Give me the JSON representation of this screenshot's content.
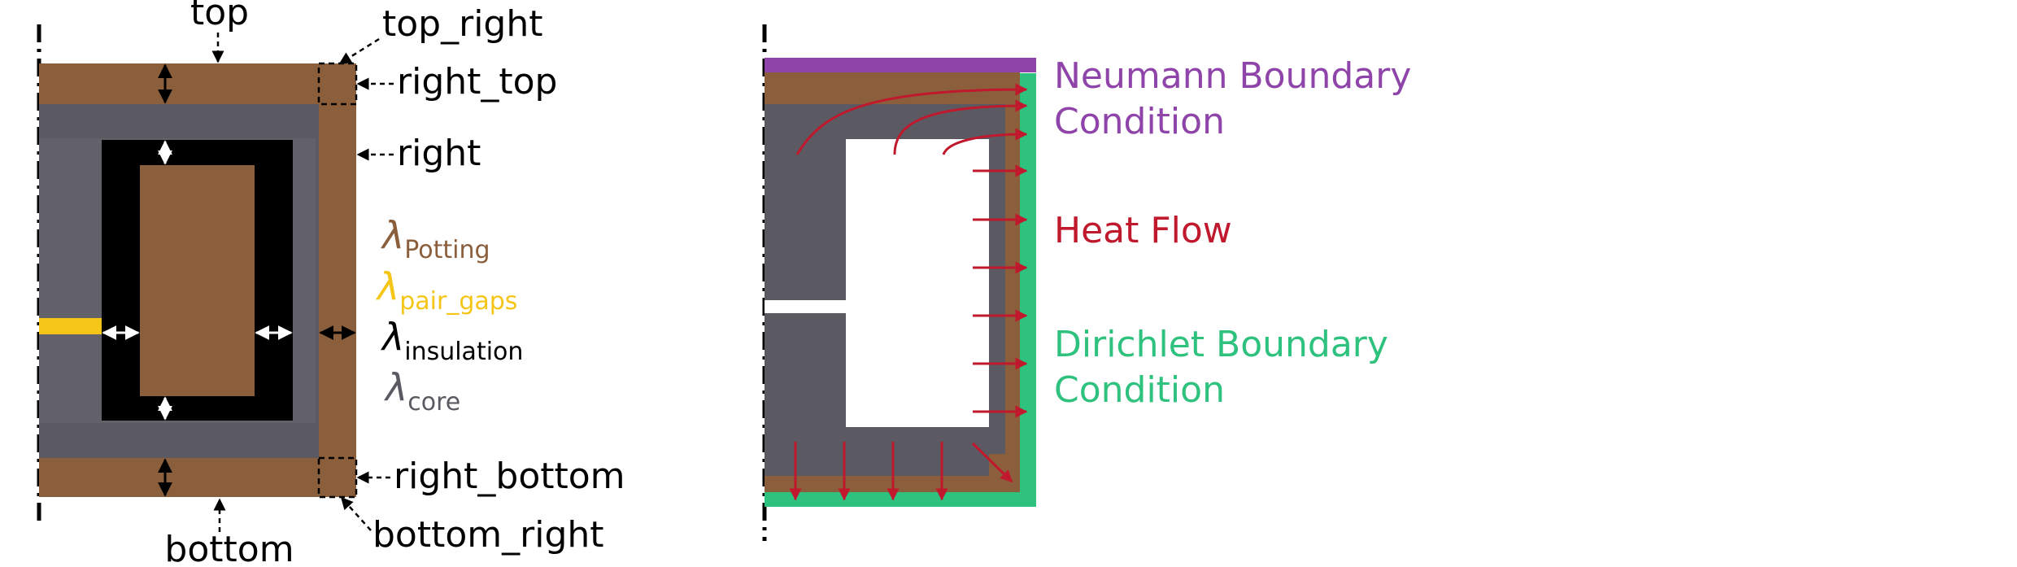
{
  "colors": {
    "potting": "#8B5E3C",
    "core": "#5B5A63",
    "insulation": "#000000",
    "pair_gaps": "#F5C518",
    "neumann": "#8E44A8",
    "dirichlet": "#2EC27E",
    "heat_flow": "#C0182C",
    "text": "#000000"
  },
  "left_diagram": {
    "labels": {
      "top": "top",
      "top_right": "top_right",
      "right_top": "right_top",
      "right": "right",
      "right_bottom": "right_bottom",
      "bottom_right": "bottom_right",
      "bottom": "bottom"
    },
    "legend": [
      {
        "symbol": "λ",
        "subscript": "Potting",
        "color": "#8B5E3C"
      },
      {
        "symbol": "λ",
        "subscript": "pair_gaps",
        "color": "#F5C518"
      },
      {
        "symbol": "λ",
        "subscript": "insulation",
        "color": "#000000"
      },
      {
        "symbol": "λ",
        "subscript": "core",
        "color": "#5B5A63"
      }
    ]
  },
  "right_diagram": {
    "labels": {
      "neumann_line1": "Neumann Boundary",
      "neumann_line2": "Condition",
      "heat_flow": "Heat Flow",
      "dirichlet_line1": "Dirichlet Boundary",
      "dirichlet_line2": "Condition"
    }
  }
}
